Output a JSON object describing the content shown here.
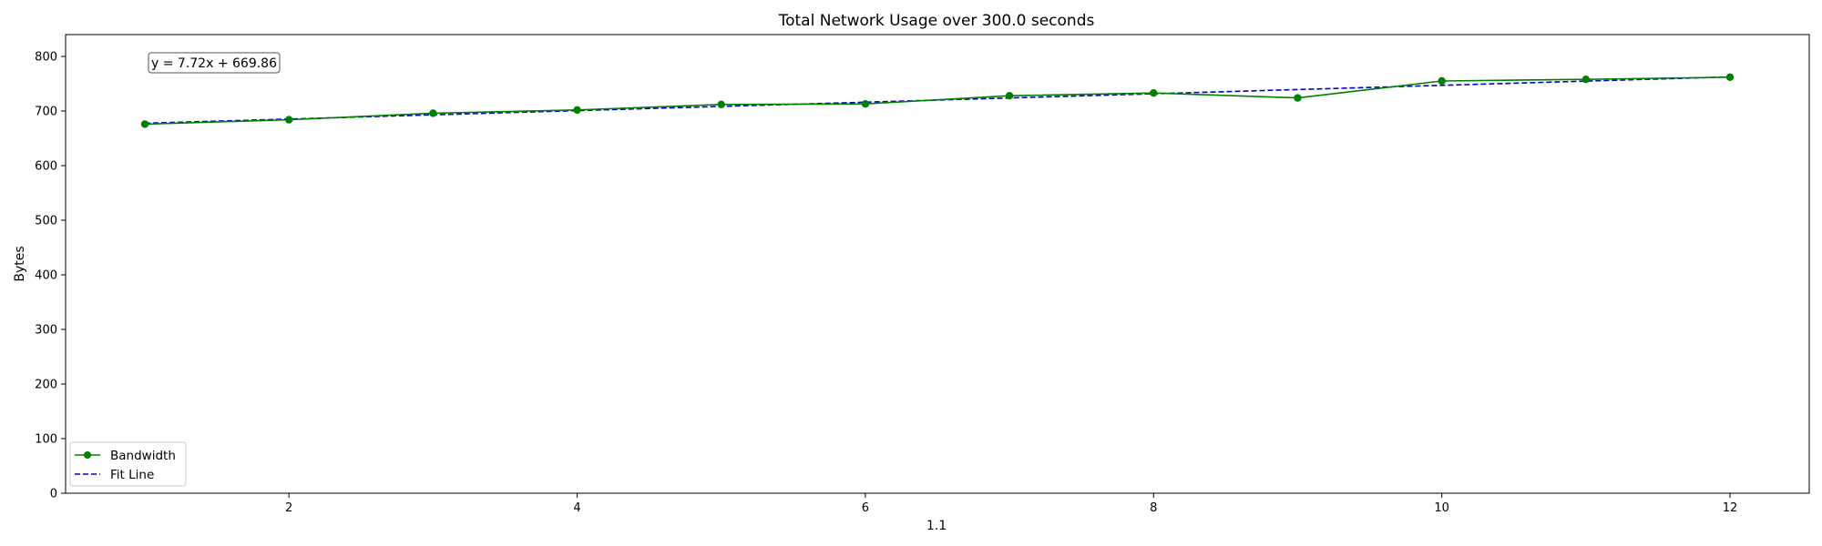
{
  "chart_data": {
    "type": "line",
    "title": "Total Network Usage over 300.0 seconds",
    "xlabel": "1.1",
    "ylabel": "Bytes",
    "xlim": [
      0.45,
      12.55
    ],
    "ylim": [
      0,
      840
    ],
    "x_ticks": [
      2,
      4,
      6,
      8,
      10,
      12
    ],
    "y_ticks": [
      0,
      100,
      200,
      300,
      400,
      500,
      600,
      700,
      800
    ],
    "grid": false,
    "legend_position": "lower-left",
    "annotation": "y = 7.72x + 669.86",
    "series": [
      {
        "name": "Bandwidth",
        "style": "solid-line-with-circle-markers",
        "color": "#008000",
        "x": [
          1,
          2,
          3,
          4,
          5,
          6,
          7,
          8,
          9,
          10,
          11,
          12
        ],
        "y": [
          676,
          684,
          696,
          702,
          712,
          713,
          728,
          733,
          724,
          755,
          758,
          762
        ]
      },
      {
        "name": "Fit Line",
        "style": "dashed-line",
        "color": "#0000cc",
        "x": [
          1,
          2,
          3,
          4,
          5,
          6,
          7,
          8,
          9,
          10,
          11,
          12
        ],
        "y": [
          677.58,
          685.3,
          693.02,
          700.74,
          708.46,
          716.18,
          723.9,
          731.62,
          739.34,
          747.06,
          754.78,
          762.5
        ]
      }
    ]
  }
}
